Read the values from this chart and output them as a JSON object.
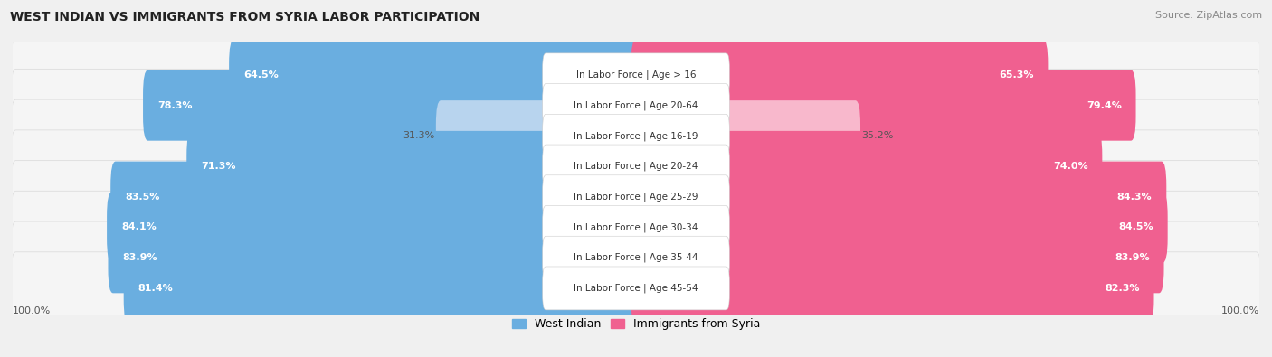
{
  "title": "WEST INDIAN VS IMMIGRANTS FROM SYRIA LABOR PARTICIPATION",
  "source": "Source: ZipAtlas.com",
  "categories": [
    "In Labor Force | Age > 16",
    "In Labor Force | Age 20-64",
    "In Labor Force | Age 16-19",
    "In Labor Force | Age 20-24",
    "In Labor Force | Age 25-29",
    "In Labor Force | Age 30-34",
    "In Labor Force | Age 35-44",
    "In Labor Force | Age 45-54"
  ],
  "west_indian": [
    64.5,
    78.3,
    31.3,
    71.3,
    83.5,
    84.1,
    83.9,
    81.4
  ],
  "syria": [
    65.3,
    79.4,
    35.2,
    74.0,
    84.3,
    84.5,
    83.9,
    82.3
  ],
  "west_indian_color": "#6aaee0",
  "syria_color": "#f06090",
  "west_indian_light_color": "#b8d4ee",
  "syria_light_color": "#f8b8cc",
  "background_color": "#f0f0f0",
  "row_bg_color": "#f5f5f5",
  "row_border_color": "#dddddd",
  "label_bg_color": "#ffffff",
  "max_value": 100.0,
  "legend_west_indian": "West Indian",
  "legend_syria": "Immigrants from Syria",
  "title_fontsize": 10,
  "source_fontsize": 8,
  "bar_label_fontsize": 8,
  "cat_label_fontsize": 7.5
}
